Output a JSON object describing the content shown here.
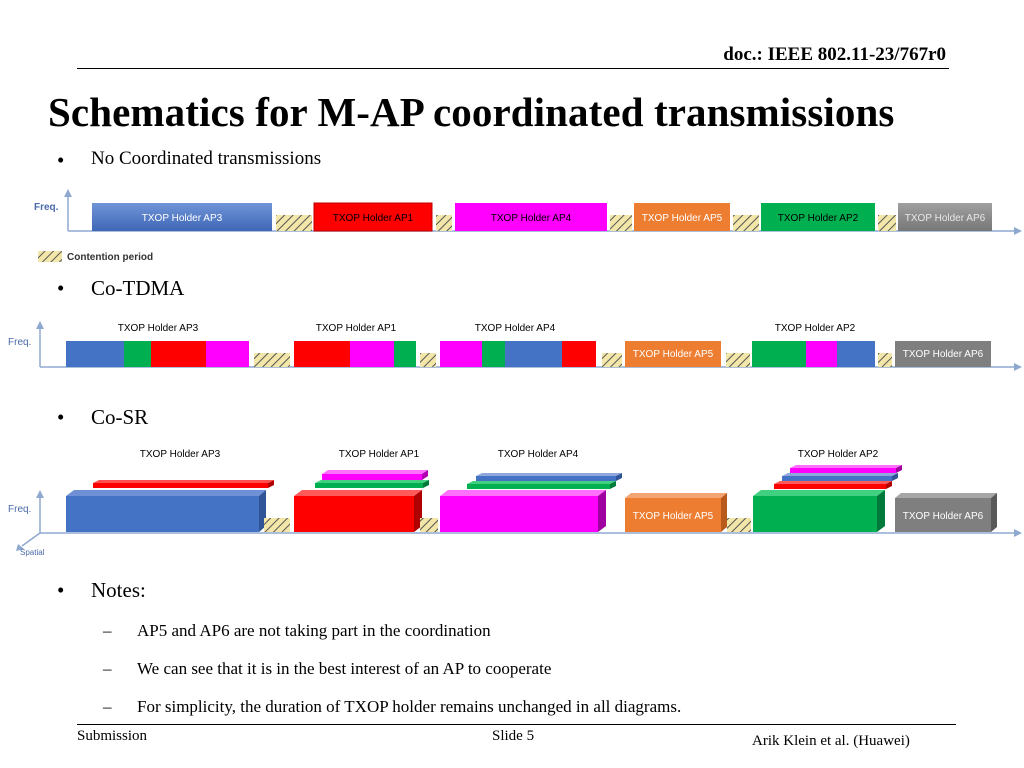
{
  "header": {
    "doc_id": "doc.: IEEE 802.11-23/767r0"
  },
  "title": "Schematics for M-AP coordinated transmissions",
  "sections": {
    "none": {
      "bullet": "No Coordinated transmissions"
    },
    "tdma": {
      "bullet": "Co-TDMA"
    },
    "sr": {
      "bullet": "Co-SR"
    },
    "notes": {
      "bullet": "Notes:",
      "items": [
        "AP5 and AP6 are not taking part in the coordination",
        "We can see that it is in the best interest of an AP to cooperate",
        "For simplicity, the duration of TXOP holder remains unchanged in all diagrams."
      ]
    }
  },
  "diagram_labels": {
    "freq_axis_1": "Freq.",
    "freq_axis_2": "Freq.",
    "freq_axis_3": "Freq.",
    "spatial_axis": "Spatial",
    "contention_legend": "Contention period",
    "none_blocks": {
      "ap3": "TXOP Holder AP3",
      "ap1": "TXOP Holder AP1",
      "ap4": "TXOP Holder AP4",
      "ap5": "TXOP Holder AP5",
      "ap2": "TXOP Holder AP2",
      "ap6": "TXOP Holder AP6"
    },
    "tdma_labels": {
      "ap3": "TXOP Holder AP3",
      "ap1": "TXOP Holder AP1",
      "ap4": "TXOP Holder AP4",
      "ap2": "TXOP Holder AP2",
      "ap5": "TXOP Holder AP5",
      "ap6": "TXOP Holder AP6"
    },
    "sr_labels": {
      "ap3": "TXOP Holder AP3",
      "ap1": "TXOP Holder AP1",
      "ap4": "TXOP Holder AP4",
      "ap2": "TXOP Holder AP2",
      "ap5": "TXOP Holder AP5",
      "ap6": "TXOP Holder AP6"
    }
  },
  "colors": {
    "ap1": "#ff0000",
    "ap2": "#00b050",
    "ap3": "#4472c4",
    "ap4": "#ff00ff",
    "ap5": "#ed7d31",
    "ap6": "#7f7f7f"
  },
  "footer": {
    "left": "Submission",
    "center": "Slide 5",
    "right": "Arik Klein et al. (Huawei)"
  }
}
